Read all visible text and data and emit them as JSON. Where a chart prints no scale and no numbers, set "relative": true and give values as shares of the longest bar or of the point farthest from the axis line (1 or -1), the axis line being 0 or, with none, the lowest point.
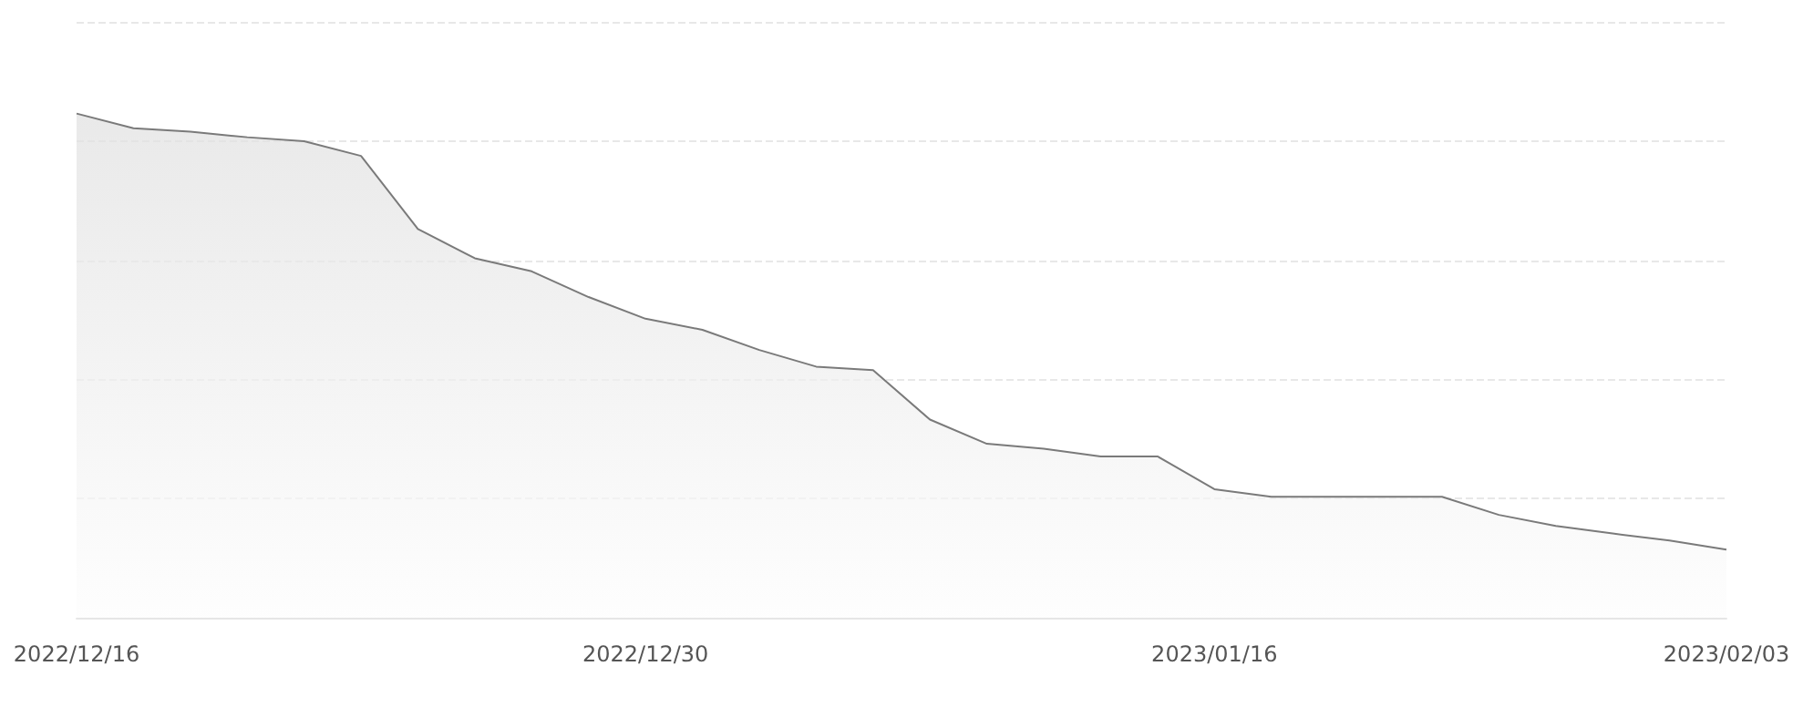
{
  "chart_data": {
    "type": "area",
    "relative": true,
    "grid": "y",
    "marker": "none",
    "line_style": "solid",
    "categories": [
      "2022/12/16",
      null,
      null,
      null,
      null,
      null,
      null,
      null,
      null,
      null,
      "2022/12/30",
      null,
      null,
      null,
      null,
      null,
      null,
      null,
      null,
      null,
      "2023/01/16",
      null,
      null,
      null,
      null,
      null,
      null,
      null,
      null,
      "2023/02/03"
    ],
    "series": [
      {
        "color": "#7a7a7a",
        "values": [
          1,
          0.971,
          0.964,
          0.953,
          0.945,
          0.916,
          0.771,
          0.713,
          0.687,
          0.636,
          0.593,
          0.571,
          0.531,
          0.498,
          0.491,
          0.393,
          0.345,
          0.335,
          0.32,
          0.32,
          0.255,
          0.24,
          0.24,
          0.24,
          0.24,
          0.204,
          0.182,
          0.167,
          0.153,
          0.135
        ]
      }
    ]
  }
}
